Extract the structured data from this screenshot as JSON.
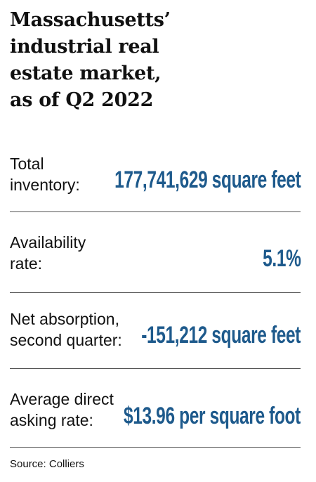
{
  "title": {
    "line1": "Massachusetts’",
    "line2": "industrial real",
    "line3": "estate market,",
    "line4": "as of Q2 2022"
  },
  "stats": [
    {
      "label_line1": "Total",
      "label_line2": "inventory:",
      "value": "177,741,629 square feet"
    },
    {
      "label_line1": "Availability",
      "label_line2": "rate:",
      "value": "5.1%"
    },
    {
      "label_line1": "Net absorption,",
      "label_line2": "second quarter:",
      "value": "-151,212 square feet"
    },
    {
      "label_line1": "Average direct",
      "label_line2": "asking rate:",
      "value": "$13.96 per square foot"
    }
  ],
  "source": "Source: Colliers",
  "colors": {
    "value_blue": "#1e5a8c",
    "text": "#111111",
    "divider": "#555555"
  }
}
